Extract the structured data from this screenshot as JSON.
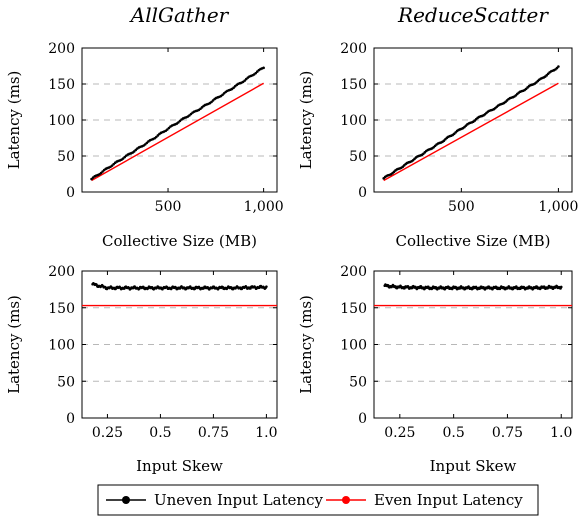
{
  "colors": {
    "uneven": "#000000",
    "even": "#ff0000",
    "grid": "#b8b8b8"
  },
  "legend": {
    "entries": [
      {
        "label": "Uneven Input Latency",
        "color": "#000000",
        "marker": "circle"
      },
      {
        "label": "Even Input Latency",
        "color": "#ff0000",
        "marker": "circle"
      }
    ],
    "placement": "bottom-center"
  },
  "chart_data": [
    {
      "type": "scatter",
      "title": "AllGather",
      "xlabel": "Collective Size (MB)",
      "ylabel": "Latency (ms)",
      "xlim": [
        50,
        1070
      ],
      "ylim": [
        0,
        200
      ],
      "xticks": [
        "500",
        "1,000"
      ],
      "yticks": [
        "0",
        "50",
        "100",
        "150",
        "200"
      ],
      "grid": "horizontal dashed",
      "series": [
        {
          "name": "Uneven Input Latency",
          "x": [
            100,
            200,
            300,
            400,
            500,
            600,
            700,
            800,
            900,
            1000
          ],
          "y": [
            18,
            36,
            53,
            70,
            88,
            105,
            121,
            138,
            155,
            173
          ]
        },
        {
          "name": "Even Input Latency",
          "x": [
            100,
            1000
          ],
          "y": [
            16,
            151
          ]
        }
      ]
    },
    {
      "type": "scatter",
      "title": "ReduceScatter",
      "xlabel": "Collective Size (MB)",
      "ylabel": "Latency (ms)",
      "xlim": [
        50,
        1070
      ],
      "ylim": [
        0,
        200
      ],
      "xticks": [
        "500",
        "1,000"
      ],
      "yticks": [
        "0",
        "50",
        "100",
        "150",
        "200"
      ],
      "grid": "horizontal dashed",
      "series": [
        {
          "name": "Uneven Input Latency",
          "x": [
            100,
            200,
            300,
            400,
            500,
            600,
            700,
            800,
            900,
            1000
          ],
          "y": [
            19,
            36,
            53,
            70,
            88,
            105,
            121,
            138,
            155,
            174
          ]
        },
        {
          "name": "Even Input Latency",
          "x": [
            100,
            1000
          ],
          "y": [
            16,
            151
          ]
        }
      ]
    },
    {
      "type": "scatter",
      "title": "",
      "xlabel": "Input Skew",
      "ylabel": "Latency (ms)",
      "xlim": [
        0.13,
        1.05
      ],
      "ylim": [
        0,
        200
      ],
      "xticks": [
        "0.25",
        "0.5",
        "0.75",
        "1.0"
      ],
      "yticks": [
        "0",
        "50",
        "100",
        "150",
        "200"
      ],
      "grid": "horizontal dashed",
      "series": [
        {
          "name": "Uneven Input Latency",
          "x": [
            0.18,
            0.25,
            0.4,
            0.55,
            0.7,
            0.85,
            1.0
          ],
          "y": [
            182,
            177,
            177,
            177,
            177,
            177,
            178
          ]
        },
        {
          "name": "Even Input Latency",
          "x": [
            0.13,
            1.05
          ],
          "y": [
            153,
            153
          ]
        }
      ]
    },
    {
      "type": "scatter",
      "title": "",
      "xlabel": "Input Skew",
      "ylabel": "Latency (ms)",
      "xlim": [
        0.13,
        1.05
      ],
      "ylim": [
        0,
        200
      ],
      "xticks": [
        "0.25",
        "0.5",
        "0.75",
        "1.0"
      ],
      "yticks": [
        "0",
        "50",
        "100",
        "150",
        "200"
      ],
      "grid": "horizontal dashed",
      "series": [
        {
          "name": "Uneven Input Latency",
          "x": [
            0.18,
            0.25,
            0.4,
            0.55,
            0.7,
            0.85,
            1.0
          ],
          "y": [
            180,
            178,
            177,
            177,
            177,
            177,
            178
          ]
        },
        {
          "name": "Even Input Latency",
          "x": [
            0.13,
            1.05
          ],
          "y": [
            153,
            153
          ]
        }
      ]
    }
  ]
}
